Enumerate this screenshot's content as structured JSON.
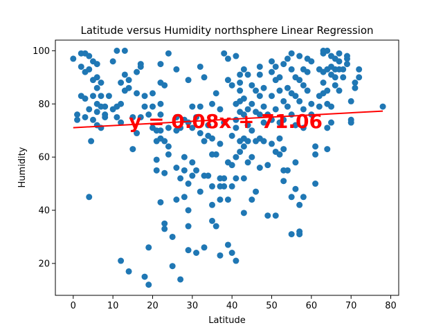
{
  "chart_data": {
    "type": "scatter",
    "title": "Latitude versus Humidity northsphere Linear Regression",
    "xlabel": "Latitude",
    "ylabel": "Humidity",
    "xlim": [
      -4.5,
      82
    ],
    "ylim": [
      8,
      104
    ],
    "xticks": [
      0,
      10,
      20,
      30,
      40,
      50,
      60,
      70,
      80
    ],
    "yticks": [
      20,
      40,
      60,
      80,
      100
    ],
    "grid": false,
    "colors": {
      "points": "#1f77b4",
      "regression": "#ff0000"
    },
    "regression": {
      "slope": 0.08,
      "intercept": 71.06,
      "x_range": [
        0,
        78
      ],
      "equation": "y = 0.08x + 71.06",
      "equation_anchor": [
        14,
        71
      ]
    },
    "series": [
      {
        "points": [
          [
            0,
            97
          ],
          [
            1,
            76
          ],
          [
            1,
            74
          ],
          [
            2,
            94
          ],
          [
            2,
            83
          ],
          [
            2,
            99
          ],
          [
            3,
            99
          ],
          [
            3,
            92
          ],
          [
            3,
            82
          ],
          [
            3,
            75
          ],
          [
            4,
            98
          ],
          [
            4,
            93
          ],
          [
            4,
            78
          ],
          [
            4,
            45
          ],
          [
            4.5,
            66
          ],
          [
            5,
            96
          ],
          [
            5,
            89
          ],
          [
            5,
            83
          ],
          [
            5,
            74
          ],
          [
            6,
            95
          ],
          [
            6,
            90
          ],
          [
            6,
            86
          ],
          [
            6,
            80
          ],
          [
            6,
            77
          ],
          [
            6,
            72
          ],
          [
            7,
            88
          ],
          [
            7,
            83
          ],
          [
            7,
            79
          ],
          [
            7,
            71
          ],
          [
            8,
            79
          ],
          [
            8,
            76
          ],
          [
            8,
            75
          ],
          [
            9,
            83
          ],
          [
            10,
            78
          ],
          [
            10,
            96
          ],
          [
            11,
            100
          ],
          [
            11,
            79
          ],
          [
            11,
            75
          ],
          [
            12,
            88
          ],
          [
            12,
            80
          ],
          [
            12,
            73
          ],
          [
            12,
            21
          ],
          [
            13,
            91
          ],
          [
            13,
            85
          ],
          [
            13,
            100
          ],
          [
            14,
            86
          ],
          [
            14,
            89
          ],
          [
            14,
            17
          ],
          [
            15,
            63
          ],
          [
            15,
            75
          ],
          [
            16,
            92
          ],
          [
            16,
            84
          ],
          [
            16,
            69
          ],
          [
            17,
            95
          ],
          [
            17,
            94
          ],
          [
            17,
            75
          ],
          [
            18,
            83
          ],
          [
            18,
            79
          ],
          [
            18,
            15
          ],
          [
            19,
            12
          ],
          [
            19,
            26
          ],
          [
            19,
            76
          ],
          [
            20,
            84
          ],
          [
            20,
            79
          ],
          [
            20,
            71
          ],
          [
            21,
            70
          ],
          [
            21,
            66
          ],
          [
            21,
            59
          ],
          [
            21,
            55
          ],
          [
            22,
            95
          ],
          [
            22,
            88
          ],
          [
            22,
            80
          ],
          [
            22,
            76
          ],
          [
            22,
            70
          ],
          [
            22,
            43
          ],
          [
            22,
            67
          ],
          [
            23,
            87
          ],
          [
            23,
            66
          ],
          [
            23,
            54
          ],
          [
            23,
            35
          ],
          [
            23,
            33
          ],
          [
            24,
            99
          ],
          [
            24,
            71
          ],
          [
            24,
            64
          ],
          [
            24,
            61
          ],
          [
            25,
            30
          ],
          [
            25,
            19
          ],
          [
            26,
            93
          ],
          [
            26,
            75
          ],
          [
            26,
            70
          ],
          [
            26,
            56
          ],
          [
            26,
            44
          ],
          [
            27,
            71
          ],
          [
            27,
            52
          ],
          [
            27,
            14
          ],
          [
            28,
            74
          ],
          [
            28,
            60
          ],
          [
            28,
            55
          ],
          [
            28,
            45
          ],
          [
            29,
            89
          ],
          [
            29,
            73
          ],
          [
            29,
            50
          ],
          [
            29,
            40
          ],
          [
            29,
            34
          ],
          [
            29,
            25
          ],
          [
            30,
            79
          ],
          [
            30,
            71
          ],
          [
            30,
            58
          ],
          [
            30,
            53
          ],
          [
            31,
            75
          ],
          [
            31,
            55
          ],
          [
            31,
            24
          ],
          [
            32,
            94
          ],
          [
            32,
            79
          ],
          [
            32,
            69
          ],
          [
            32,
            47
          ],
          [
            33,
            90
          ],
          [
            33,
            66
          ],
          [
            33,
            53
          ],
          [
            33,
            26
          ],
          [
            34,
            72
          ],
          [
            34,
            68
          ],
          [
            34,
            53
          ],
          [
            35,
            80
          ],
          [
            35,
            67
          ],
          [
            35,
            61
          ],
          [
            35,
            49
          ],
          [
            35,
            42
          ],
          [
            35,
            36
          ],
          [
            36,
            84
          ],
          [
            36,
            61
          ],
          [
            36,
            34
          ],
          [
            37,
            78
          ],
          [
            37,
            65
          ],
          [
            37,
            52
          ],
          [
            37,
            49
          ],
          [
            37,
            44
          ],
          [
            37,
            23
          ],
          [
            38,
            99
          ],
          [
            38,
            73
          ],
          [
            38,
            52
          ],
          [
            38,
            49
          ],
          [
            39,
            97
          ],
          [
            39,
            89
          ],
          [
            39,
            58
          ],
          [
            39,
            44
          ],
          [
            39,
            27
          ],
          [
            40,
            87
          ],
          [
            40,
            68
          ],
          [
            40,
            57
          ],
          [
            40,
            49
          ],
          [
            40,
            24
          ],
          [
            41,
            98
          ],
          [
            41,
            80
          ],
          [
            41,
            74
          ],
          [
            41,
            71
          ],
          [
            41,
            60
          ],
          [
            41,
            52
          ],
          [
            41,
            21
          ],
          [
            42,
            91
          ],
          [
            42,
            88
          ],
          [
            42,
            85
          ],
          [
            42,
            81
          ],
          [
            42,
            77
          ],
          [
            42,
            66
          ],
          [
            42,
            62
          ],
          [
            43,
            93
          ],
          [
            43,
            82
          ],
          [
            43,
            76
          ],
          [
            43,
            67
          ],
          [
            43,
            64
          ],
          [
            43,
            52
          ],
          [
            43,
            39
          ],
          [
            44,
            91
          ],
          [
            44,
            78
          ],
          [
            44,
            72
          ],
          [
            44,
            66
          ],
          [
            44,
            58
          ],
          [
            45,
            87
          ],
          [
            45,
            80
          ],
          [
            45,
            70
          ],
          [
            45,
            60
          ],
          [
            45,
            44
          ],
          [
            46,
            85
          ],
          [
            46,
            77
          ],
          [
            46,
            66
          ],
          [
            46,
            47
          ],
          [
            47,
            94
          ],
          [
            47,
            91
          ],
          [
            47,
            83
          ],
          [
            47,
            76
          ],
          [
            47,
            67
          ],
          [
            47,
            56
          ],
          [
            48,
            86
          ],
          [
            48,
            79
          ],
          [
            48,
            73
          ],
          [
            48,
            66
          ],
          [
            49,
            76
          ],
          [
            49,
            57
          ],
          [
            49,
            38
          ],
          [
            50,
            96
          ],
          [
            50,
            92
          ],
          [
            50,
            83
          ],
          [
            50,
            74
          ],
          [
            50,
            65
          ],
          [
            51,
            94
          ],
          [
            51,
            89
          ],
          [
            51,
            78
          ],
          [
            51,
            62
          ],
          [
            51,
            38
          ],
          [
            52,
            90
          ],
          [
            52,
            85
          ],
          [
            52,
            73
          ],
          [
            52,
            67
          ],
          [
            52,
            61
          ],
          [
            53,
            95
          ],
          [
            53,
            81
          ],
          [
            53,
            74
          ],
          [
            53,
            63
          ],
          [
            53,
            55
          ],
          [
            53,
            51
          ],
          [
            54,
            97
          ],
          [
            54,
            86
          ],
          [
            54,
            79
          ],
          [
            54,
            55
          ],
          [
            55,
            99
          ],
          [
            55,
            93
          ],
          [
            55,
            84
          ],
          [
            55,
            76
          ],
          [
            55,
            45
          ],
          [
            55,
            31
          ],
          [
            56,
            90
          ],
          [
            56,
            83
          ],
          [
            56,
            72
          ],
          [
            56,
            58
          ],
          [
            56,
            48
          ],
          [
            57,
            98
          ],
          [
            57,
            89
          ],
          [
            57,
            81
          ],
          [
            57,
            42
          ],
          [
            57,
            32
          ],
          [
            57,
            31
          ],
          [
            58,
            93
          ],
          [
            58,
            87
          ],
          [
            58,
            78
          ],
          [
            58,
            71
          ],
          [
            58,
            45
          ],
          [
            59,
            97
          ],
          [
            59,
            92
          ],
          [
            59,
            85
          ],
          [
            60,
            96
          ],
          [
            60,
            80
          ],
          [
            60,
            76
          ],
          [
            61,
            64
          ],
          [
            61,
            61
          ],
          [
            61,
            50
          ],
          [
            62,
            93
          ],
          [
            62,
            83
          ],
          [
            62,
            79
          ],
          [
            63,
            99
          ],
          [
            63,
            92
          ],
          [
            63,
            100
          ],
          [
            63,
            88
          ],
          [
            63,
            84
          ],
          [
            64,
            100
          ],
          [
            64,
            93
          ],
          [
            64,
            85
          ],
          [
            64,
            80
          ],
          [
            64,
            71
          ],
          [
            64,
            63
          ],
          [
            65,
            98
          ],
          [
            65,
            94
          ],
          [
            65,
            91
          ],
          [
            65,
            79
          ],
          [
            65,
            73
          ],
          [
            66,
            97
          ],
          [
            66,
            93
          ],
          [
            66,
            90
          ],
          [
            66,
            87
          ],
          [
            67,
            99
          ],
          [
            67,
            96
          ],
          [
            67,
            93
          ],
          [
            67,
            85
          ],
          [
            68,
            93
          ],
          [
            68,
            90
          ],
          [
            69,
            98
          ],
          [
            69,
            97
          ],
          [
            69,
            95
          ],
          [
            70,
            81
          ],
          [
            70,
            74
          ],
          [
            70,
            73
          ],
          [
            71,
            88
          ],
          [
            71,
            86
          ],
          [
            72,
            93
          ],
          [
            72,
            90
          ],
          [
            78,
            79
          ]
        ]
      }
    ]
  }
}
